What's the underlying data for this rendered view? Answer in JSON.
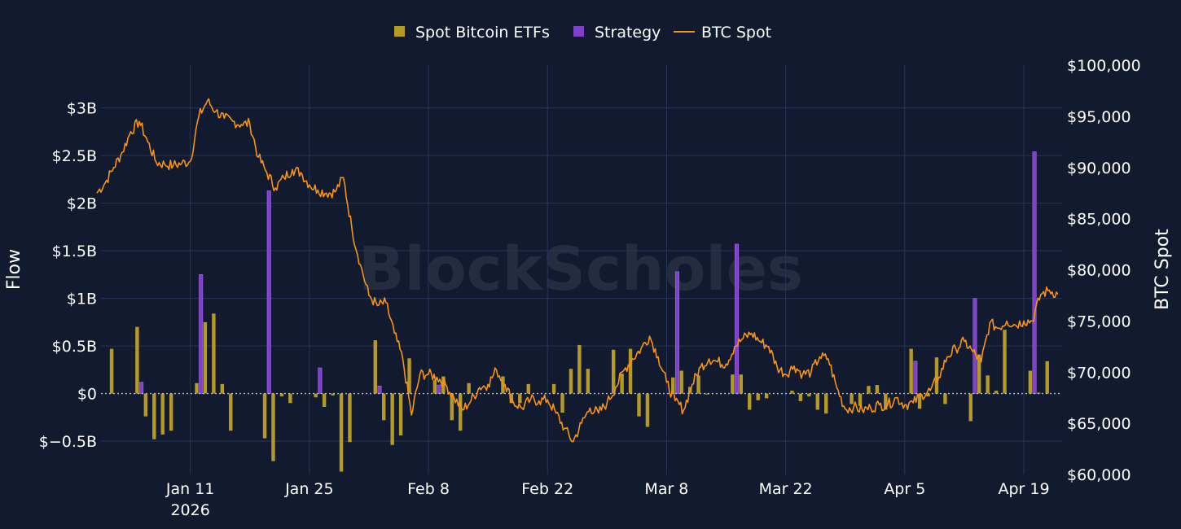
{
  "chart_data": {
    "type": "bar",
    "watermark": "BlockScholes",
    "colors": {
      "background": "#111a2e",
      "grid": "#26355a",
      "etf": "#b59a26",
      "strategy": "#8040c9",
      "btc": "#f7931a",
      "zeroline": "#b0b8c8"
    },
    "legend": {
      "placement": "top-center",
      "items": [
        {
          "label": "Spot Bitcoin ETFs",
          "kind": "bar",
          "color": "#b59a26"
        },
        {
          "label": "Strategy",
          "kind": "bar",
          "color": "#8040c9"
        },
        {
          "label": "BTC Spot",
          "kind": "line",
          "color": "#f7931a"
        }
      ]
    },
    "y_left": {
      "title": "Flow",
      "range": [
        -0.85,
        3.45
      ],
      "ticks": [
        -0.5,
        0,
        0.5,
        1,
        1.5,
        2,
        2.5,
        3
      ],
      "tick_labels": [
        "$−0.5B",
        "$0",
        "$0.5B",
        "$1B",
        "$1.5B",
        "$2B",
        "$2.5B",
        "$3B"
      ]
    },
    "y_right": {
      "title": "BTC Spot",
      "range": [
        60000,
        100000
      ],
      "ticks": [
        60000,
        65000,
        70000,
        75000,
        80000,
        85000,
        90000,
        95000,
        100000
      ],
      "tick_labels": [
        "$60,000",
        "$65,000",
        "$70,000",
        "$75,000",
        "$80,000",
        "$85,000",
        "$90,000",
        "$95,000",
        "$100,000"
      ]
    },
    "x_axis": {
      "range": [
        "2025-12-31T12:00",
        "2026-04-23T12:00"
      ],
      "ticks": [
        "2026-01-11",
        "2026-01-25",
        "2026-02-08",
        "2026-02-22",
        "2026-03-08",
        "2026-03-22",
        "2026-04-05",
        "2026-04-19"
      ],
      "tick_labels": [
        "Jan 11",
        "Jan 25",
        "Feb 8",
        "Feb 22",
        "Mar 8",
        "Mar 22",
        "Apr 5",
        "Apr 19"
      ],
      "sub_label": "2026"
    },
    "grid": true,
    "series": [
      {
        "name": "Spot Bitcoin ETFs",
        "type": "bar",
        "x": [
          "2026-01-02",
          "2026-01-05",
          "2026-01-06",
          "2026-01-07",
          "2026-01-08",
          "2026-01-09",
          "2026-01-12",
          "2026-01-13",
          "2026-01-14",
          "2026-01-15",
          "2026-01-16",
          "2026-01-20",
          "2026-01-21",
          "2026-01-22",
          "2026-01-23",
          "2026-01-26",
          "2026-01-27",
          "2026-01-28",
          "2026-01-29",
          "2026-01-30",
          "2026-02-02",
          "2026-02-03",
          "2026-02-04",
          "2026-02-05",
          "2026-02-06",
          "2026-02-09",
          "2026-02-10",
          "2026-02-11",
          "2026-02-12",
          "2026-02-13",
          "2026-02-17",
          "2026-02-18",
          "2026-02-19",
          "2026-02-20",
          "2026-02-23",
          "2026-02-24",
          "2026-02-25",
          "2026-02-26",
          "2026-02-27",
          "2026-03-02",
          "2026-03-03",
          "2026-03-04",
          "2026-03-05",
          "2026-03-06",
          "2026-03-09",
          "2026-03-10",
          "2026-03-11",
          "2026-03-12",
          "2026-03-13",
          "2026-03-16",
          "2026-03-17",
          "2026-03-18",
          "2026-03-19",
          "2026-03-20",
          "2026-03-23",
          "2026-03-24",
          "2026-03-25",
          "2026-03-26",
          "2026-03-27",
          "2026-03-30",
          "2026-03-31",
          "2026-04-01",
          "2026-04-02",
          "2026-04-03",
          "2026-04-06",
          "2026-04-07",
          "2026-04-08",
          "2026-04-09",
          "2026-04-10",
          "2026-04-13",
          "2026-04-14",
          "2026-04-15",
          "2026-04-16",
          "2026-04-17",
          "2026-04-20",
          "2026-04-21",
          "2026-04-22"
        ],
        "values": [
          0.47,
          0.7,
          -0.24,
          -0.48,
          -0.43,
          -0.39,
          0.11,
          0.75,
          0.84,
          0.1,
          -0.39,
          -0.47,
          -0.71,
          -0.03,
          -0.1,
          -0.04,
          -0.14,
          -0.02,
          -0.82,
          -0.51,
          0.56,
          -0.28,
          -0.54,
          -0.44,
          0.37,
          0.14,
          0.18,
          -0.28,
          -0.39,
          0.11,
          0.18,
          -0.1,
          -0.1,
          0.1,
          0.1,
          -0.2,
          0.26,
          0.51,
          0.26,
          0.46,
          0.21,
          0.47,
          -0.24,
          -0.35,
          0.17,
          0.24,
          0.07,
          0.19,
          -0.01,
          0.2,
          0.2,
          -0.17,
          -0.07,
          -0.05,
          0.03,
          -0.08,
          -0.03,
          -0.17,
          -0.21,
          -0.11,
          -0.13,
          0.08,
          0.09,
          -0.17,
          0.47,
          -0.16,
          -0.03,
          0.38,
          -0.11,
          -0.29,
          0.41,
          0.19,
          0.03,
          0.67,
          0.24,
          0.01,
          0.34
        ]
      },
      {
        "name": "Strategy",
        "type": "bar",
        "x": [
          "2026-01-05",
          "2026-01-12",
          "2026-01-20",
          "2026-01-26",
          "2026-02-02",
          "2026-02-09",
          "2026-03-09",
          "2026-03-16",
          "2026-04-06",
          "2026-04-13",
          "2026-04-20"
        ],
        "values": [
          0.12,
          1.25,
          2.13,
          0.27,
          0.08,
          0.09,
          1.28,
          1.57,
          0.34,
          1.0,
          2.54
        ]
      },
      {
        "name": "BTC Spot",
        "type": "line",
        "x": [
          "2025-12-31",
          "2026-01-01",
          "2026-01-02",
          "2026-01-03",
          "2026-01-04",
          "2026-01-05",
          "2026-01-06",
          "2026-01-07",
          "2026-01-08",
          "2026-01-09",
          "2026-01-10",
          "2026-01-11",
          "2026-01-12",
          "2026-01-13",
          "2026-01-14",
          "2026-01-15",
          "2026-01-16",
          "2026-01-17",
          "2026-01-18",
          "2026-01-19",
          "2026-01-20",
          "2026-01-21",
          "2026-01-22",
          "2026-01-23",
          "2026-01-24",
          "2026-01-25",
          "2026-01-26",
          "2026-01-27",
          "2026-01-28",
          "2026-01-29",
          "2026-01-30",
          "2026-01-31",
          "2026-02-01",
          "2026-02-02",
          "2026-02-03",
          "2026-02-04",
          "2026-02-05",
          "2026-02-06",
          "2026-02-07",
          "2026-02-08",
          "2026-02-09",
          "2026-02-10",
          "2026-02-11",
          "2026-02-12",
          "2026-02-13",
          "2026-02-14",
          "2026-02-15",
          "2026-02-16",
          "2026-02-17",
          "2026-02-18",
          "2026-02-19",
          "2026-02-20",
          "2026-02-21",
          "2026-02-22",
          "2026-02-23",
          "2026-02-24",
          "2026-02-25",
          "2026-02-26",
          "2026-02-27",
          "2026-02-28",
          "2026-03-01",
          "2026-03-02",
          "2026-03-03",
          "2026-03-04",
          "2026-03-05",
          "2026-03-06",
          "2026-03-07",
          "2026-03-08",
          "2026-03-09",
          "2026-03-10",
          "2026-03-11",
          "2026-03-12",
          "2026-03-13",
          "2026-03-14",
          "2026-03-15",
          "2026-03-16",
          "2026-03-17",
          "2026-03-18",
          "2026-03-19",
          "2026-03-20",
          "2026-03-21",
          "2026-03-22",
          "2026-03-23",
          "2026-03-24",
          "2026-03-25",
          "2026-03-26",
          "2026-03-27",
          "2026-03-28",
          "2026-03-29",
          "2026-03-30",
          "2026-03-31",
          "2026-04-01",
          "2026-04-02",
          "2026-04-03",
          "2026-04-04",
          "2026-04-05",
          "2026-04-06",
          "2026-04-07",
          "2026-04-08",
          "2026-04-09",
          "2026-04-10",
          "2026-04-11",
          "2026-04-12",
          "2026-04-13",
          "2026-04-14",
          "2026-04-15",
          "2026-04-16",
          "2026-04-17",
          "2026-04-18",
          "2026-04-19",
          "2026-04-20",
          "2026-04-21",
          "2026-04-22",
          "2026-04-23"
        ],
        "values": [
          87500,
          88500,
          90000,
          91500,
          93500,
          94500,
          92500,
          90500,
          90300,
          90200,
          90400,
          90600,
          95000,
          96500,
          95500,
          94800,
          94500,
          94200,
          94300,
          91000,
          89500,
          88000,
          89000,
          89800,
          89500,
          88300,
          87800,
          87500,
          87600,
          89000,
          84000,
          80500,
          77500,
          76500,
          76800,
          73800,
          71200,
          65800,
          69800,
          69800,
          69500,
          68800,
          67500,
          66300,
          67200,
          68500,
          68800,
          70200,
          68800,
          67000,
          66500,
          67300,
          67200,
          67300,
          66000,
          64500,
          63200,
          65000,
          66500,
          66000,
          67000,
          68500,
          70200,
          71300,
          72300,
          73500,
          71500,
          69000,
          67200,
          66300,
          68800,
          70500,
          71300,
          71000,
          70800,
          72500,
          73300,
          73800,
          73000,
          72500,
          70500,
          69800,
          70600,
          69800,
          70000,
          71500,
          71300,
          68500,
          66400,
          66600,
          66300,
          66500,
          66800,
          66800,
          67500,
          66800,
          67000,
          67800,
          68200,
          69500,
          71500,
          72300,
          73000,
          72000,
          71000,
          74800,
          74300,
          75000,
          74600,
          75000,
          75000,
          77600,
          78000,
          77600
        ]
      }
    ]
  }
}
